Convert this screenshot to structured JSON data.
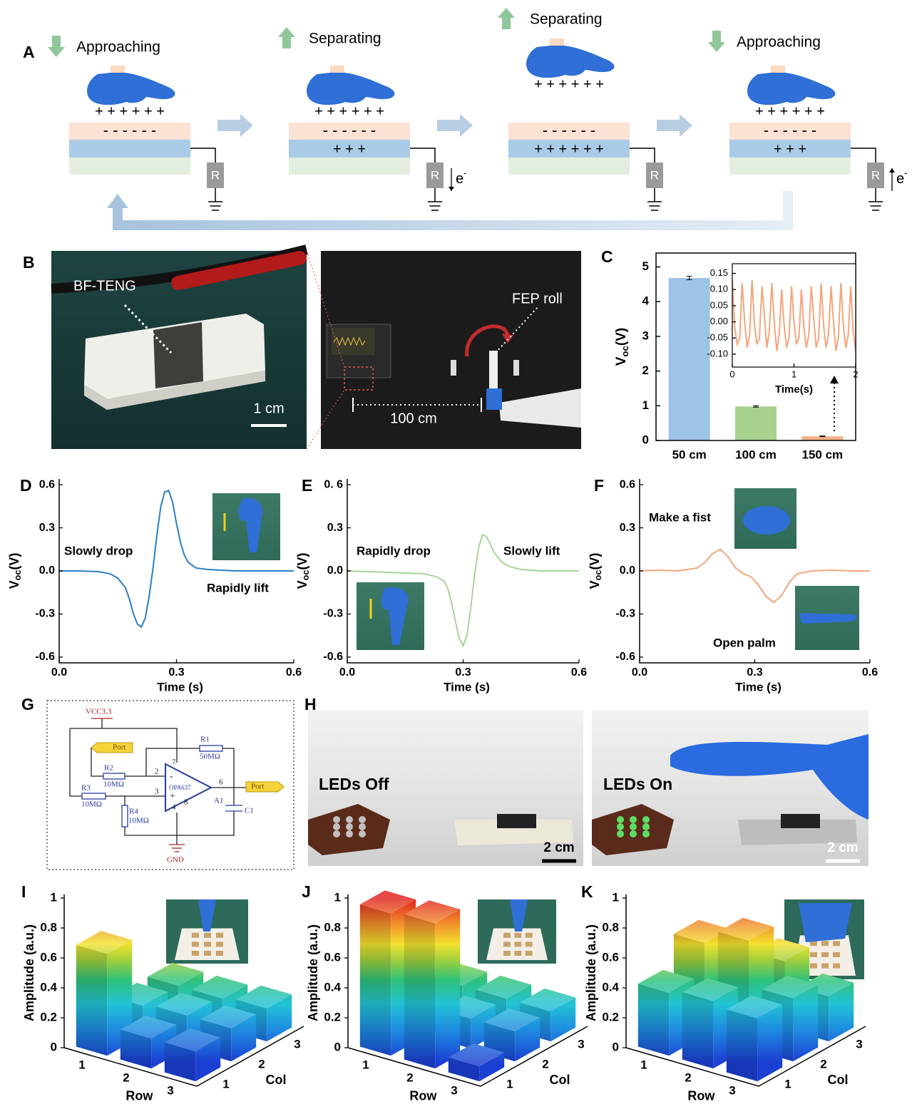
{
  "panel_labels": [
    "A",
    "B",
    "C",
    "D",
    "E",
    "F",
    "G",
    "H",
    "I",
    "J",
    "K"
  ],
  "diagram_a": {
    "stages": [
      {
        "label": "Approaching",
        "hand_charges": "+ + + + + +",
        "top_layer": "- - - - - -"
      },
      {
        "label": "Separating",
        "hand_charges": "+ + + + + +",
        "top_layer": "- - - - - -",
        "bottom_layer": "+ + +"
      },
      {
        "label": "Separating",
        "hand_charges": "+ + + + + +",
        "top_layer": "- - - - - -",
        "bottom_layer": "+ + + + + +"
      },
      {
        "label": "Approaching",
        "hand_charges": "+ + + + + +",
        "top_layer": "- - - - - -",
        "bottom_layer": "+ + +"
      }
    ],
    "resistor": "R",
    "electron": "e",
    "electron_sup": "-"
  },
  "photo_b": {
    "device_label": "BF-TENG",
    "scale": "1 cm",
    "roll_label": "FEP roll",
    "distance": "100 cm"
  },
  "chart_data": [
    {
      "type": "bar",
      "categories": [
        "50 cm",
        "100 cm",
        "150 cm"
      ],
      "values": [
        4.68,
        0.98,
        0.12
      ],
      "errors": [
        0.05,
        0.02,
        0.01
      ],
      "colors": [
        "#9dc3e6",
        "#a9d18e",
        "#f4b183"
      ],
      "ylim": [
        0,
        5.4
      ],
      "yticks": [
        0,
        1,
        2,
        3,
        4,
        5
      ],
      "ylabel_parts": [
        "V",
        "oc",
        "(V)"
      ]
    },
    {
      "type": "line",
      "xlabel": "Time(s)",
      "color": "#f4a57a",
      "xlim": [
        0,
        2
      ],
      "xticks": [
        0,
        1,
        2
      ],
      "ylim": [
        -0.14,
        0.18
      ],
      "yticks": [
        {
          "value": -0.1,
          "label": "-0.10"
        },
        -0.05,
        {
          "value": 0,
          "label": "0.00"
        },
        0.05,
        {
          "value": 0.1,
          "label": "0.10"
        },
        0.15
      ],
      "x": [
        0,
        0.04,
        0.08,
        0.12,
        0.16,
        0.2,
        0.24,
        0.28,
        0.32,
        0.36,
        0.4,
        0.44,
        0.48,
        0.52,
        0.56,
        0.6,
        0.64,
        0.68,
        0.72,
        0.76,
        0.8,
        0.84,
        0.88,
        0.92,
        0.96,
        1,
        1.04,
        1.08,
        1.12,
        1.16,
        1.2,
        1.24,
        1.28,
        1.32,
        1.36,
        1.4,
        1.44,
        1.48,
        1.52,
        1.56,
        1.6,
        1.64,
        1.68,
        1.72,
        1.76,
        1.8,
        1.84,
        1.88,
        1.92,
        1.96,
        2
      ],
      "values": [
        0.13,
        -0.02,
        -0.07,
        -0.05,
        0.12,
        0,
        -0.08,
        -0.04,
        0.13,
        -0.01,
        -0.07,
        -0.05,
        0.11,
        0.02,
        -0.08,
        -0.03,
        0.12,
        0,
        -0.09,
        -0.04,
        0.1,
        -0.01,
        -0.08,
        -0.05,
        0.11,
        0,
        -0.07,
        -0.05,
        0.1,
        -0.02,
        -0.08,
        -0.04,
        0.11,
        0.01,
        -0.08,
        -0.05,
        0.12,
        -0.01,
        -0.08,
        -0.04,
        0.11,
        0,
        -0.09,
        -0.05,
        0.12,
        -0.01,
        -0.08,
        -0.04,
        0.11,
        -0.03,
        -0.09
      ]
    },
    {
      "type": "line",
      "xlabel": "Time (s)",
      "ylabel_parts": [
        "V",
        "oc",
        "(V)"
      ],
      "color": "#2a7fc4",
      "xlim": [
        0,
        0.6
      ],
      "xticks": [
        {
          "value": 0,
          "label": "0.0"
        },
        0.3,
        0.6
      ],
      "ylim": [
        -0.64,
        0.64
      ],
      "yticks": [
        -0.6,
        -0.3,
        {
          "value": 0,
          "label": "0.0"
        },
        0.3,
        0.6
      ],
      "annotations": [
        "Slowly drop",
        "Rapidly lift"
      ],
      "x": [
        0,
        0.05,
        0.1,
        0.13,
        0.15,
        0.17,
        0.18,
        0.19,
        0.2,
        0.21,
        0.22,
        0.23,
        0.24,
        0.25,
        0.26,
        0.27,
        0.28,
        0.29,
        0.3,
        0.31,
        0.32,
        0.33,
        0.35,
        0.38,
        0.45,
        0.6
      ],
      "values": [
        0,
        0,
        -0.005,
        -0.02,
        -0.05,
        -0.12,
        -0.2,
        -0.3,
        -0.37,
        -0.39,
        -0.33,
        -0.18,
        0.02,
        0.25,
        0.45,
        0.55,
        0.56,
        0.48,
        0.33,
        0.2,
        0.11,
        0.06,
        0.02,
        0.01,
        0,
        0
      ]
    },
    {
      "type": "line",
      "xlabel": "Time (s)",
      "ylabel_parts": [
        "V",
        "oc",
        "(V)"
      ],
      "color": "#a6d49a",
      "xlim": [
        0,
        0.6
      ],
      "xticks": [
        {
          "value": 0,
          "label": "0.0"
        },
        0.3,
        0.6
      ],
      "ylim": [
        -0.64,
        0.64
      ],
      "yticks": [
        -0.6,
        -0.3,
        {
          "value": 0,
          "label": "0.0"
        },
        0.3,
        {
          "value": 0.6,
          "label": "0. 6"
        }
      ],
      "annotations": [
        "Rapidly drop",
        "Slowly lift"
      ],
      "x": [
        0,
        0.1,
        0.2,
        0.23,
        0.25,
        0.26,
        0.27,
        0.28,
        0.29,
        0.3,
        0.31,
        0.32,
        0.33,
        0.34,
        0.35,
        0.36,
        0.37,
        0.38,
        0.4,
        0.42,
        0.45,
        0.5,
        0.6
      ],
      "values": [
        0,
        -0.01,
        -0.02,
        -0.04,
        -0.07,
        -0.12,
        -0.22,
        -0.35,
        -0.47,
        -0.52,
        -0.45,
        -0.25,
        -0.02,
        0.16,
        0.25,
        0.24,
        0.19,
        0.13,
        0.06,
        0.03,
        0.01,
        0,
        0
      ]
    },
    {
      "type": "line",
      "xlabel": "Time (s)",
      "ylabel_parts": [
        "V",
        "oc",
        "(V)"
      ],
      "color": "#f4a57a",
      "xlim": [
        0,
        0.6
      ],
      "xticks": [
        {
          "value": 0,
          "label": "0.0"
        },
        0.3,
        0.6
      ],
      "ylim": [
        -0.64,
        0.64
      ],
      "yticks": [
        -0.6,
        -0.3,
        {
          "value": 0,
          "label": "0.0"
        },
        0.3,
        0.6
      ],
      "annotations": [
        "Make a fist",
        "Open palm"
      ],
      "x": [
        0,
        0.05,
        0.1,
        0.15,
        0.17,
        0.19,
        0.21,
        0.23,
        0.25,
        0.27,
        0.29,
        0.31,
        0.33,
        0.35,
        0.37,
        0.39,
        0.41,
        0.45,
        0.5,
        0.55,
        0.6
      ],
      "values": [
        0,
        0.005,
        0,
        0.02,
        0.06,
        0.12,
        0.15,
        0.1,
        0.02,
        -0.02,
        -0.04,
        -0.1,
        -0.18,
        -0.22,
        -0.17,
        -0.08,
        -0.02,
        0,
        0.005,
        0,
        0
      ]
    },
    {
      "type": "bar3d",
      "zlabel": "Amplitude (a.u.)",
      "xlabel": "Row",
      "ylabel": "Col",
      "rows": [
        1,
        2,
        3
      ],
      "cols": [
        1,
        2,
        3
      ],
      "zlim": [
        0,
        1
      ],
      "zticks": [
        0,
        0.2,
        0.4,
        0.6,
        0.8,
        1
      ],
      "values": [
        [
          0.68,
          0.2,
          0.2
        ],
        [
          0.2,
          0.22,
          0.2
        ],
        [
          0.2,
          0.22,
          0.22
        ]
      ]
    },
    {
      "type": "bar3d",
      "zlabel": "Amplitude (a.u.)",
      "xlabel": "Row",
      "ylabel": "Col",
      "rows": [
        1,
        2,
        3
      ],
      "cols": [
        1,
        2,
        3
      ],
      "zlim": [
        0,
        1
      ],
      "zticks": [
        0,
        0.2,
        0.4,
        0.6,
        0.8,
        1
      ],
      "values": [
        [
          0.95,
          0.2,
          0.2
        ],
        [
          0.97,
          0.2,
          0.2
        ],
        [
          0.1,
          0.2,
          0.2
        ]
      ]
    },
    {
      "type": "bar3d",
      "zlabel": "Amplitude (a.u.)",
      "xlabel": "Row",
      "ylabel": "Col",
      "rows": [
        1,
        2,
        3
      ],
      "cols": [
        1,
        2,
        3
      ],
      "zlim": [
        0,
        1
      ],
      "zticks": [
        0,
        0.2,
        0.4,
        0.6,
        0.8,
        1
      ],
      "values": [
        [
          0.42,
          0.62,
          0.45
        ],
        [
          0.45,
          0.72,
          0.45
        ],
        [
          0.42,
          0.42,
          0.3
        ]
      ]
    }
  ],
  "circuit_g": {
    "vcc": "VCC3.3",
    "port_in": "Port",
    "port_out": "Port",
    "r1": "R1",
    "r1_value": "50MΩ",
    "r2": "R2",
    "r2_value": "10MΩ",
    "r3": "R3",
    "r3_value": "10MΩ",
    "r4": "R4",
    "r4_value": "10MΩ",
    "amp": "OPA637",
    "amp_ref": "A1",
    "c1": "C1",
    "gnd": "GND",
    "pins": [
      "2",
      "3",
      "6",
      "7",
      "4",
      "8"
    ],
    "minus": "-",
    "plus": "+"
  },
  "photo_h": {
    "off": "LEDs Off",
    "on": "LEDs On",
    "scale_left": "2 cm",
    "scale_right": "2 cm"
  }
}
